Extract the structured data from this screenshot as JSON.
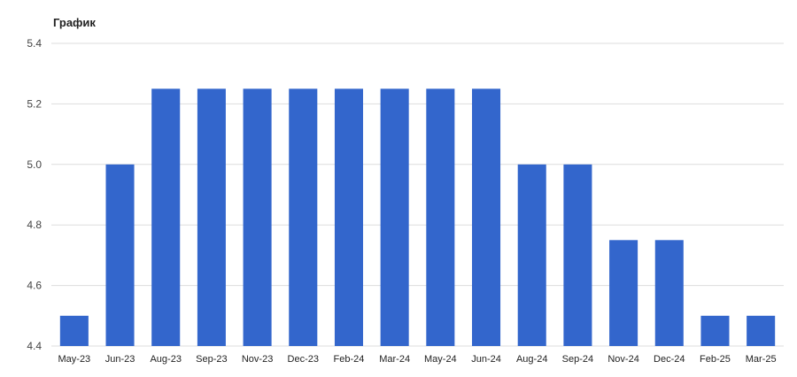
{
  "chart_data": {
    "type": "bar",
    "title": "График",
    "categories": [
      "May-23",
      "Jun-23",
      "Aug-23",
      "Sep-23",
      "Nov-23",
      "Dec-23",
      "Feb-24",
      "Mar-24",
      "May-24",
      "Jun-24",
      "Aug-24",
      "Sep-24",
      "Nov-24",
      "Dec-24",
      "Feb-25",
      "Mar-25"
    ],
    "values": [
      4.5,
      5.0,
      5.25,
      5.25,
      5.25,
      5.25,
      5.25,
      5.25,
      5.25,
      5.25,
      5.0,
      5.0,
      4.75,
      4.75,
      4.5,
      4.5
    ],
    "xlabel": "",
    "ylabel": "",
    "ylim": [
      4.4,
      5.4
    ],
    "yticks": [
      "4.4",
      "4.6",
      "4.8",
      "5.0",
      "5.2",
      "5.4"
    ],
    "grid": true,
    "legend": "none",
    "bar_color": "#3366cc",
    "grid_color": "#dddddd"
  }
}
